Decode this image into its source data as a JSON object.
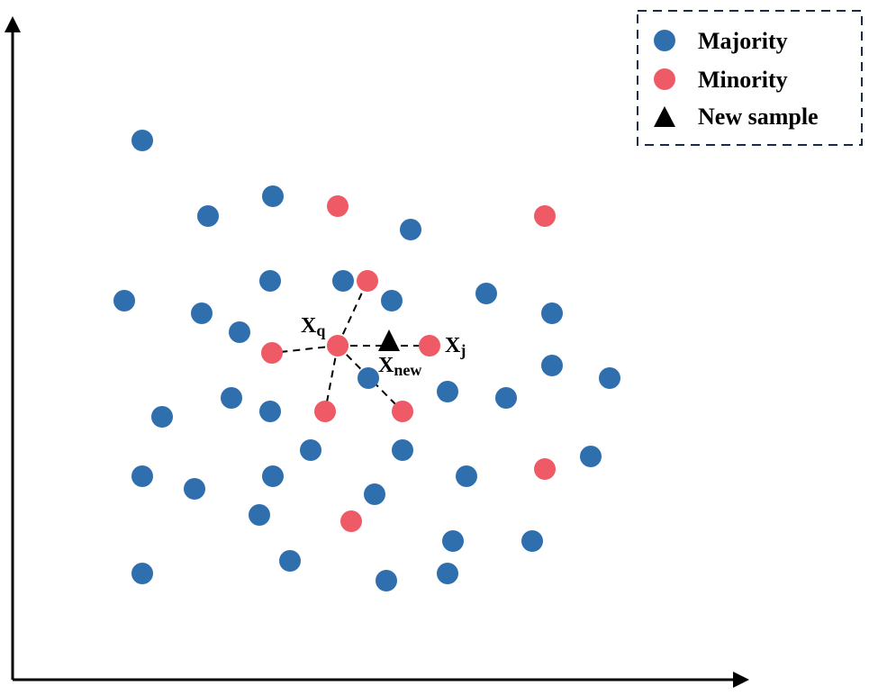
{
  "colors": {
    "majority": "#2f6fae",
    "minority": "#ee5a66",
    "new_sample": "#000000",
    "axes": "#000000",
    "legend_border": "#1c2a4a"
  },
  "legend": {
    "majority_label": "Majority",
    "minority_label": "Minority",
    "new_sample_label": "New sample"
  },
  "labels": {
    "xq_main": "X",
    "xq_sub": "q",
    "xj_main": "X",
    "xj_sub": "j",
    "xnew_main": "X",
    "xnew_sub": "new"
  }
}
